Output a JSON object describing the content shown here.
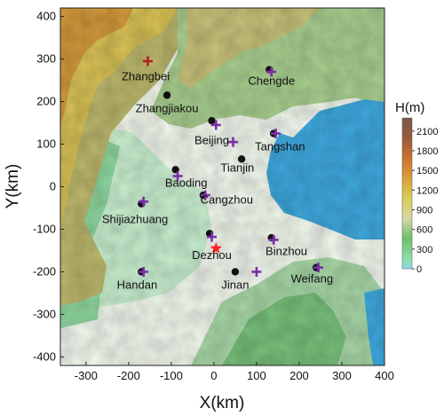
{
  "map": {
    "xlabel": "X(km)",
    "ylabel": "Y(km)",
    "xlim": [
      -360,
      400
    ],
    "ylim": [
      -420,
      420
    ],
    "xticks": [
      -300,
      -200,
      -100,
      0,
      100,
      200,
      300,
      400
    ],
    "yticks": [
      -400,
      -300,
      -200,
      -100,
      0,
      100,
      200,
      300,
      400
    ],
    "legend_title": "H(m)",
    "legend_ticks": [
      0,
      300,
      600,
      900,
      1200,
      1500,
      1800,
      2100
    ],
    "legend_range": [
      0,
      2300
    ],
    "colors": {
      "sea": "#3fa9df",
      "plain": "#f4faf0",
      "site_dot": "#111111",
      "site_cross": "#7b2fa8",
      "star": "#ff2020",
      "zhangbei_cross": "#b22222"
    },
    "cities": [
      {
        "name": "Zhangbei",
        "x": -160,
        "y": 250
      },
      {
        "name": "Zhangjiakou",
        "x": -110,
        "y": 175
      },
      {
        "name": "Chengde",
        "x": 135,
        "y": 240
      },
      {
        "name": "Beijing",
        "x": -5,
        "y": 100
      },
      {
        "name": "Tangshan",
        "x": 155,
        "y": 85
      },
      {
        "name": "Tianjin",
        "x": 55,
        "y": 35
      },
      {
        "name": "Baoding",
        "x": -65,
        "y": 0
      },
      {
        "name": "Cangzhou",
        "x": 30,
        "y": -40
      },
      {
        "name": "Shijiazhuang",
        "x": -185,
        "y": -85
      },
      {
        "name": "Binzhou",
        "x": 170,
        "y": -160
      },
      {
        "name": "Dezhou",
        "x": -5,
        "y": -170
      },
      {
        "name": "Jinan",
        "x": 50,
        "y": -240
      },
      {
        "name": "Handan",
        "x": -180,
        "y": -240
      },
      {
        "name": "Weifang",
        "x": 230,
        "y": -225
      }
    ],
    "dots": [
      {
        "x": -110,
        "y": 215
      },
      {
        "x": 130,
        "y": 275
      },
      {
        "x": -5,
        "y": 155
      },
      {
        "x": 140,
        "y": 125
      },
      {
        "x": 65,
        "y": 65
      },
      {
        "x": -90,
        "y": 40
      },
      {
        "x": -25,
        "y": -20
      },
      {
        "x": -170,
        "y": -40
      },
      {
        "x": -10,
        "y": -110
      },
      {
        "x": 135,
        "y": -120
      },
      {
        "x": 50,
        "y": -200
      },
      {
        "x": -170,
        "y": -200
      },
      {
        "x": 240,
        "y": -190
      }
    ],
    "crosses": [
      {
        "x": 135,
        "y": 270
      },
      {
        "x": 5,
        "y": 145
      },
      {
        "x": 145,
        "y": 125
      },
      {
        "x": 45,
        "y": 105
      },
      {
        "x": -85,
        "y": 25
      },
      {
        "x": -20,
        "y": -20
      },
      {
        "x": -165,
        "y": -35
      },
      {
        "x": -5,
        "y": -118
      },
      {
        "x": 140,
        "y": -125
      },
      {
        "x": 100,
        "y": -200
      },
      {
        "x": 245,
        "y": -190
      },
      {
        "x": -165,
        "y": -200
      }
    ],
    "star": {
      "x": 5,
      "y": -145
    },
    "zhangbei_cross": {
      "x": -155,
      "y": 295
    }
  }
}
